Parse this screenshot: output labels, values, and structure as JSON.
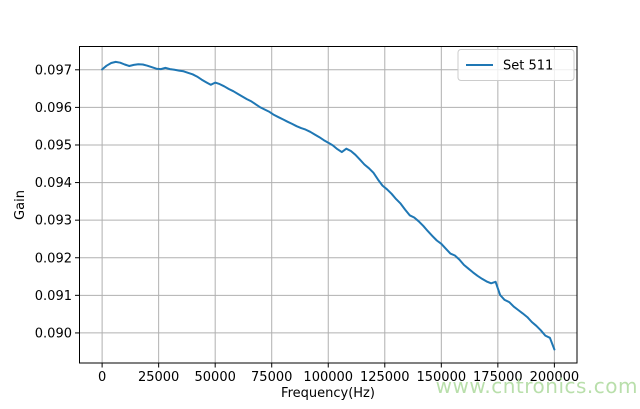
{
  "chart_data": {
    "type": "line",
    "title": "",
    "xlabel": "Frequency(Hz)",
    "ylabel": "Gain",
    "xlim": [
      -10000,
      210000
    ],
    "ylim": [
      0.0892,
      0.09762
    ],
    "grid": true,
    "x_ticks": [
      0,
      25000,
      50000,
      75000,
      100000,
      125000,
      150000,
      175000,
      200000
    ],
    "x_tick_labels": [
      "0",
      "25000",
      "50000",
      "75000",
      "100000",
      "125000",
      "150000",
      "175000",
      "200000"
    ],
    "y_ticks": [
      0.09,
      0.091,
      0.092,
      0.093,
      0.094,
      0.095,
      0.096,
      0.097
    ],
    "y_tick_labels": [
      "0.090",
      "0.091",
      "0.092",
      "0.093",
      "0.094",
      "0.095",
      "0.096",
      "0.097"
    ],
    "legend": {
      "position": "upper right",
      "entries": [
        "Set 511"
      ]
    },
    "series": [
      {
        "name": "Set 511",
        "color": "#1f77b4",
        "points": [
          [
            0,
            0.09701
          ],
          [
            2000,
            0.09711
          ],
          [
            4000,
            0.09718
          ],
          [
            6000,
            0.09721
          ],
          [
            8000,
            0.09719
          ],
          [
            10000,
            0.09714
          ],
          [
            12000,
            0.0971
          ],
          [
            14000,
            0.09713
          ],
          [
            16000,
            0.09715
          ],
          [
            18000,
            0.09714
          ],
          [
            20000,
            0.09711
          ],
          [
            22000,
            0.09707
          ],
          [
            24000,
            0.09703
          ],
          [
            26000,
            0.09702
          ],
          [
            28000,
            0.09705
          ],
          [
            30000,
            0.09702
          ],
          [
            32000,
            0.097
          ],
          [
            34000,
            0.09698
          ],
          [
            36000,
            0.09696
          ],
          [
            38000,
            0.09692
          ],
          [
            40000,
            0.09688
          ],
          [
            42000,
            0.09682
          ],
          [
            44000,
            0.09674
          ],
          [
            46000,
            0.09667
          ],
          [
            48000,
            0.0966
          ],
          [
            50000,
            0.09666
          ],
          [
            52000,
            0.09662
          ],
          [
            54000,
            0.09656
          ],
          [
            56000,
            0.09649
          ],
          [
            58000,
            0.09643
          ],
          [
            60000,
            0.09636
          ],
          [
            62000,
            0.09629
          ],
          [
            64000,
            0.09622
          ],
          [
            66000,
            0.09616
          ],
          [
            68000,
            0.09608
          ],
          [
            70000,
            0.096
          ],
          [
            72000,
            0.09594
          ],
          [
            74000,
            0.09588
          ],
          [
            76000,
            0.0958
          ],
          [
            78000,
            0.09574
          ],
          [
            80000,
            0.09568
          ],
          [
            82000,
            0.09562
          ],
          [
            84000,
            0.09556
          ],
          [
            86000,
            0.0955
          ],
          [
            88000,
            0.09545
          ],
          [
            90000,
            0.09541
          ],
          [
            92000,
            0.09535
          ],
          [
            94000,
            0.09528
          ],
          [
            96000,
            0.09521
          ],
          [
            98000,
            0.09513
          ],
          [
            100000,
            0.09506
          ],
          [
            102000,
            0.09499
          ],
          [
            104000,
            0.09489
          ],
          [
            106000,
            0.09481
          ],
          [
            108000,
            0.0949
          ],
          [
            110000,
            0.09484
          ],
          [
            112000,
            0.09474
          ],
          [
            114000,
            0.09461
          ],
          [
            116000,
            0.09448
          ],
          [
            118000,
            0.09438
          ],
          [
            120000,
            0.09426
          ],
          [
            122000,
            0.09408
          ],
          [
            124000,
            0.09392
          ],
          [
            126000,
            0.09382
          ],
          [
            128000,
            0.0937
          ],
          [
            130000,
            0.09356
          ],
          [
            132000,
            0.09344
          ],
          [
            134000,
            0.09328
          ],
          [
            136000,
            0.09313
          ],
          [
            138000,
            0.09307
          ],
          [
            140000,
            0.09297
          ],
          [
            142000,
            0.09285
          ],
          [
            144000,
            0.09271
          ],
          [
            146000,
            0.09258
          ],
          [
            148000,
            0.09246
          ],
          [
            150000,
            0.09237
          ],
          [
            152000,
            0.09224
          ],
          [
            154000,
            0.09211
          ],
          [
            156000,
            0.09206
          ],
          [
            158000,
            0.09195
          ],
          [
            160000,
            0.09181
          ],
          [
            162000,
            0.09171
          ],
          [
            164000,
            0.09161
          ],
          [
            166000,
            0.09152
          ],
          [
            168000,
            0.09144
          ],
          [
            170000,
            0.09137
          ],
          [
            172000,
            0.09132
          ],
          [
            174000,
            0.09136
          ],
          [
            176000,
            0.09101
          ],
          [
            178000,
            0.09088
          ],
          [
            180000,
            0.09082
          ],
          [
            182000,
            0.0907
          ],
          [
            184000,
            0.09061
          ],
          [
            186000,
            0.09052
          ],
          [
            188000,
            0.09042
          ],
          [
            190000,
            0.09029
          ],
          [
            192000,
            0.09019
          ],
          [
            194000,
            0.09007
          ],
          [
            196000,
            0.08993
          ],
          [
            198000,
            0.08987
          ],
          [
            200000,
            0.08956
          ]
        ]
      }
    ]
  },
  "colors": {
    "line": "#1f77b4",
    "grid": "#b0b0b0",
    "axis": "#000000",
    "legend_edge": "#cccccc",
    "legend_fill": "#ffffff",
    "background": "#ffffff",
    "watermark": "#b9dfab"
  },
  "watermark": {
    "text": "www.cntronics.com"
  }
}
